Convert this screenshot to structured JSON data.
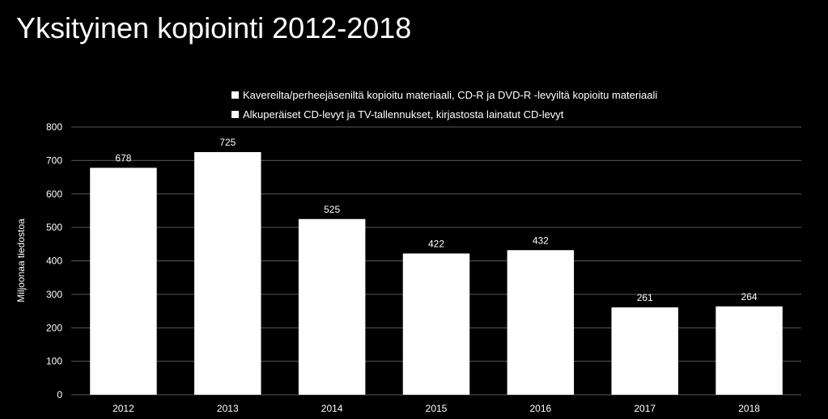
{
  "colors": {
    "background": "#000000",
    "bar": "#ffffff",
    "gridline": "#595959",
    "text": "#ffffff"
  },
  "chart_data": {
    "type": "bar",
    "title": "Yksityinen kopiointi 2012-2018",
    "xlabel": "",
    "ylabel": "Miljoonaa tiedostoa",
    "categories": [
      "2012",
      "2013",
      "2014",
      "2015",
      "2016",
      "2017",
      "2018"
    ],
    "values": [
      678,
      725,
      525,
      422,
      432,
      261,
      264
    ],
    "data_labels": [
      "678",
      "725",
      "525",
      "422",
      "432",
      "261",
      "264"
    ],
    "ylim": [
      0,
      800
    ],
    "yticks": [
      "0",
      "100",
      "200",
      "300",
      "400",
      "500",
      "600",
      "700",
      "800"
    ],
    "grid": true,
    "legend_position": "top",
    "legend": [
      "Kavereilta/perheejäseniltä kopioitu materiaali, CD-R ja DVD-R -levyiltä kopioitu materiaali",
      "Alkuperäiset CD-levyt ja TV-tallennukset, kirjastosta lainatut CD-levyt"
    ]
  }
}
